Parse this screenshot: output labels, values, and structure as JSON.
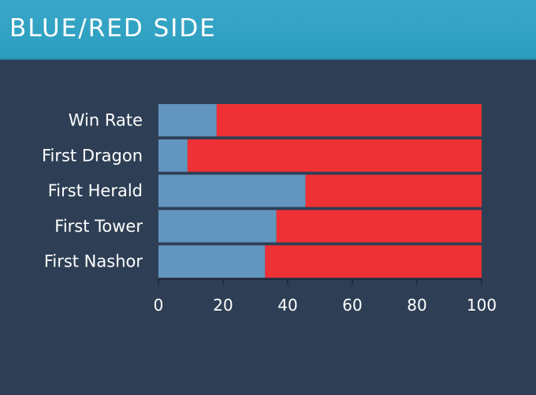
{
  "header": {
    "title": "BLUE/RED SIDE"
  },
  "colors": {
    "blue": "#6295bf",
    "red": "#ee3134",
    "background": "#2e3f55",
    "header": "#2ea3c4",
    "text": "#ffffff"
  },
  "chart_data": {
    "type": "bar",
    "orientation": "horizontal",
    "stacked": true,
    "categories": [
      "Win Rate",
      "First Dragon",
      "First Herald",
      "First Tower",
      "First Nashor"
    ],
    "series": [
      {
        "values": [
          18,
          9,
          45.5,
          36.5,
          33
        ]
      },
      {
        "values": [
          82,
          91,
          54.5,
          63.5,
          67
        ]
      }
    ],
    "xlim": [
      0,
      100
    ],
    "xticks": [
      0,
      20,
      40,
      60,
      80,
      100
    ],
    "grid": false,
    "legend": "none"
  }
}
